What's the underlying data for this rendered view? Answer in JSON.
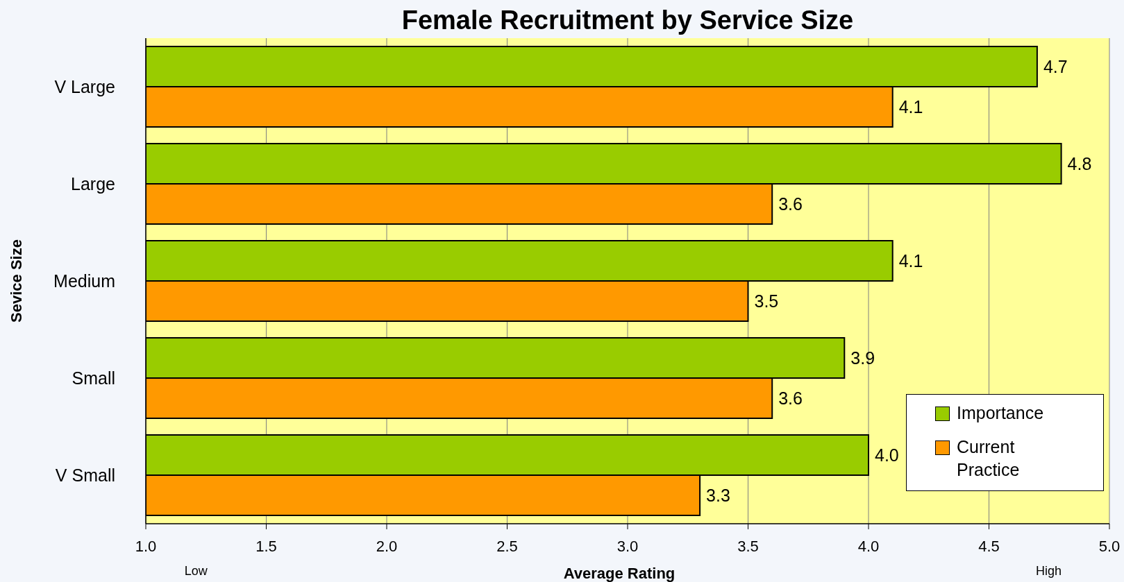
{
  "chart_data": {
    "type": "bar",
    "orientation": "horizontal",
    "title": "Female Recruitment by Service Size",
    "xlabel": "Average Rating",
    "ylabel": "Sevice Size",
    "categories": [
      "V Large",
      "Large",
      "Medium",
      "Small",
      "V Small"
    ],
    "series": [
      {
        "name": "Importance",
        "color": "#99cc00",
        "values": [
          4.7,
          4.8,
          4.1,
          3.9,
          4.0
        ],
        "value_labels": [
          "4.7",
          "4.8",
          "4.1",
          "3.9",
          "4.0"
        ]
      },
      {
        "name": "Current Practice",
        "color": "#ff9900",
        "values": [
          4.1,
          3.6,
          3.5,
          3.6,
          3.3
        ],
        "value_labels": [
          "4.1",
          "3.6",
          "3.5",
          "3.6",
          "3.3"
        ]
      }
    ],
    "xlim": [
      1,
      5
    ],
    "xticks": [
      {
        "value": 1,
        "label": "1.0"
      },
      1.5,
      {
        "value": 2,
        "label": "2.0"
      },
      2.5,
      {
        "value": 3,
        "label": "3.0"
      },
      3.5,
      {
        "value": 4,
        "label": "4.0"
      },
      4.5,
      {
        "value": 5,
        "label": "5.0"
      }
    ],
    "grid": "x",
    "legend": "bottom right",
    "annotations": [
      "Low",
      "High"
    ]
  }
}
